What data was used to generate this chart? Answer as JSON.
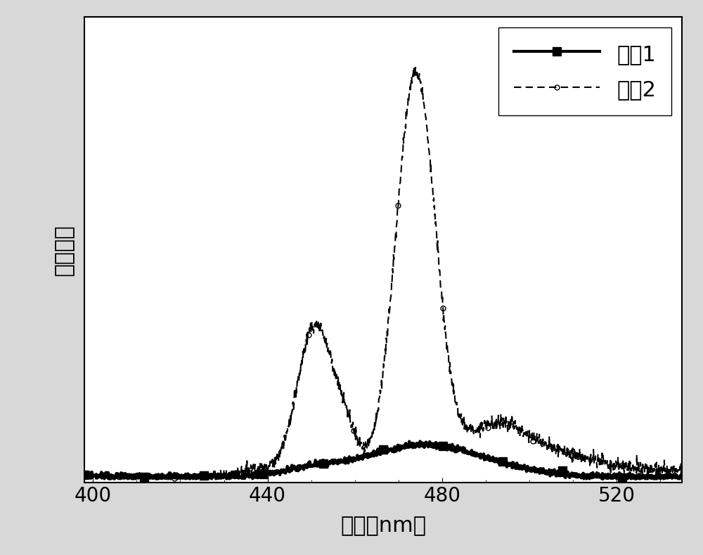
{
  "xlabel": "波长（nm）",
  "ylabel": "发光强度",
  "xlim": [
    398,
    535
  ],
  "xticks": [
    400,
    440,
    480,
    520
  ],
  "legend_labels": [
    "曲祹1",
    "曲祹2"
  ],
  "background_color": "#d8d8d8",
  "plot_bg_color": "#ffffff",
  "line1_color": "#000000",
  "line2_color": "#000000",
  "xlabel_fontsize": 22,
  "ylabel_fontsize": 22,
  "tick_fontsize": 20,
  "legend_fontsize": 22
}
